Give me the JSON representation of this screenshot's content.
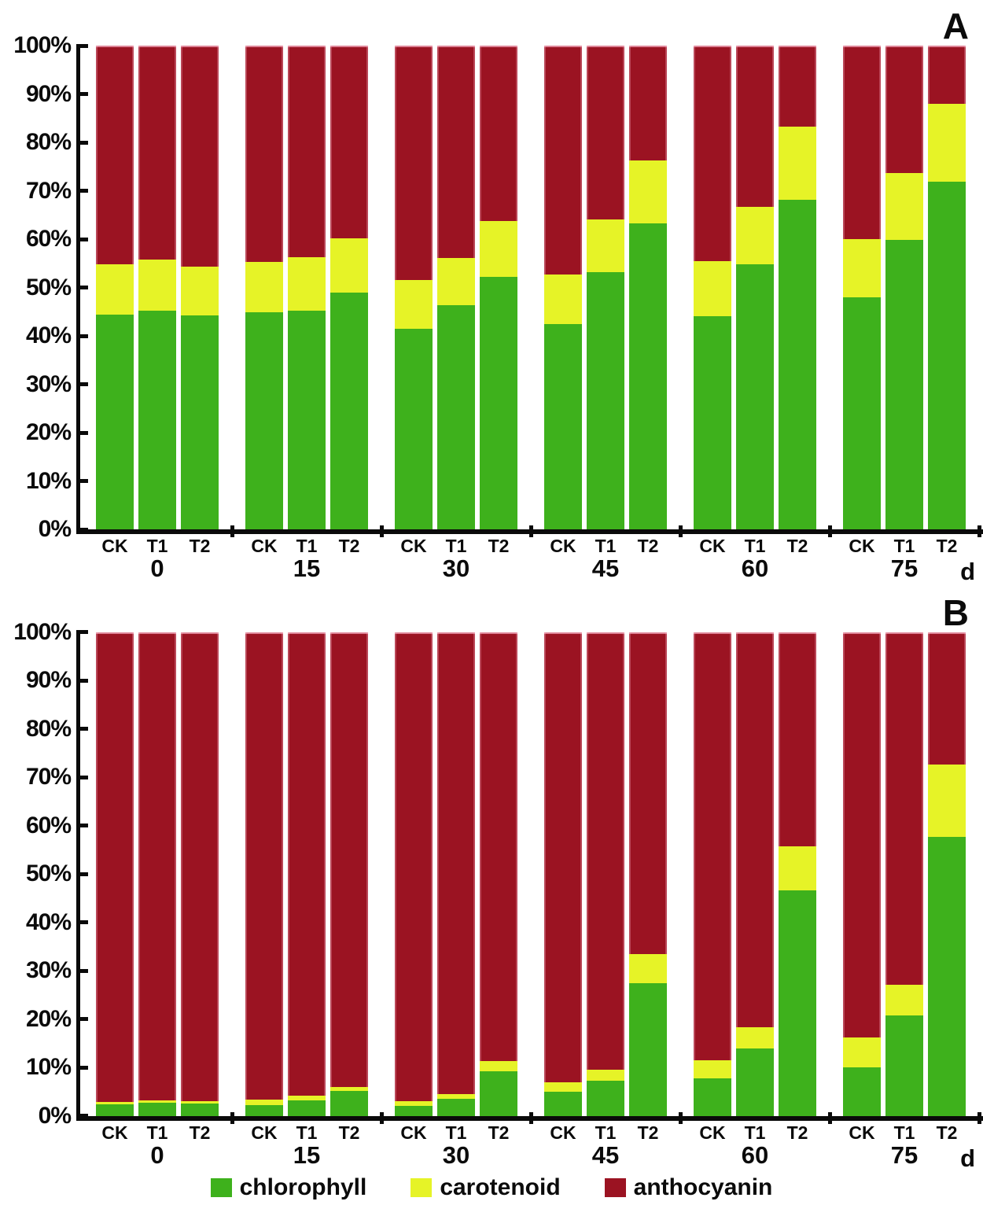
{
  "colors": {
    "chlorophyll": "#3EB11C",
    "carotenoid": "#E6F327",
    "anthocyanin": "#9B1322",
    "axis": "#0a0a0a"
  },
  "legend": {
    "items": [
      {
        "label": "chlorophyll",
        "color": "#3EB11C"
      },
      {
        "label": "carotenoid",
        "color": "#E6F327"
      },
      {
        "label": "anthocyanin",
        "color": "#9B1322"
      }
    ]
  },
  "chart_data": [
    {
      "panel_label": "A",
      "type": "bar",
      "stacked": true,
      "x_unit": "d",
      "ylim": [
        0,
        100
      ],
      "yticks": [
        "0%",
        "10%",
        "20%",
        "30%",
        "40%",
        "50%",
        "60%",
        "70%",
        "80%",
        "90%",
        "100%"
      ],
      "bar_labels": [
        "CK",
        "T1",
        "T2"
      ],
      "series_order": [
        "chlorophyll",
        "carotenoid",
        "anthocyanin"
      ],
      "groups": [
        {
          "label": "0",
          "bars": [
            {
              "label": "CK",
              "chlorophyll": 44.4,
              "carotenoid": 10.4,
              "anthocyanin": 45.2
            },
            {
              "label": "T1",
              "chlorophyll": 45.2,
              "carotenoid": 10.6,
              "anthocyanin": 44.2
            },
            {
              "label": "T2",
              "chlorophyll": 44.3,
              "carotenoid": 10.0,
              "anthocyanin": 45.7
            }
          ]
        },
        {
          "label": "15",
          "bars": [
            {
              "label": "CK",
              "chlorophyll": 44.9,
              "carotenoid": 10.4,
              "anthocyanin": 44.7
            },
            {
              "label": "T1",
              "chlorophyll": 45.2,
              "carotenoid": 11.1,
              "anthocyanin": 43.7
            },
            {
              "label": "T2",
              "chlorophyll": 49.0,
              "carotenoid": 11.2,
              "anthocyanin": 39.8
            }
          ]
        },
        {
          "label": "30",
          "bars": [
            {
              "label": "CK",
              "chlorophyll": 41.5,
              "carotenoid": 10.0,
              "anthocyanin": 48.5
            },
            {
              "label": "T1",
              "chlorophyll": 46.3,
              "carotenoid": 9.8,
              "anthocyanin": 43.9
            },
            {
              "label": "T2",
              "chlorophyll": 52.2,
              "carotenoid": 11.6,
              "anthocyanin": 36.2
            }
          ]
        },
        {
          "label": "45",
          "bars": [
            {
              "label": "CK",
              "chlorophyll": 42.5,
              "carotenoid": 10.2,
              "anthocyanin": 47.3
            },
            {
              "label": "T1",
              "chlorophyll": 53.2,
              "carotenoid": 10.9,
              "anthocyanin": 35.9
            },
            {
              "label": "T2",
              "chlorophyll": 63.3,
              "carotenoid": 13.0,
              "anthocyanin": 23.7
            }
          ]
        },
        {
          "label": "60",
          "bars": [
            {
              "label": "CK",
              "chlorophyll": 44.0,
              "carotenoid": 11.4,
              "anthocyanin": 44.6
            },
            {
              "label": "T1",
              "chlorophyll": 54.8,
              "carotenoid": 11.8,
              "anthocyanin": 33.4
            },
            {
              "label": "T2",
              "chlorophyll": 68.1,
              "carotenoid": 15.2,
              "anthocyanin": 16.7
            }
          ]
        },
        {
          "label": "75",
          "bars": [
            {
              "label": "CK",
              "chlorophyll": 47.9,
              "carotenoid": 12.1,
              "anthocyanin": 40.0
            },
            {
              "label": "T1",
              "chlorophyll": 59.8,
              "carotenoid": 13.9,
              "anthocyanin": 26.3
            },
            {
              "label": "T2",
              "chlorophyll": 71.9,
              "carotenoid": 16.1,
              "anthocyanin": 12.0
            }
          ]
        }
      ]
    },
    {
      "panel_label": "B",
      "type": "bar",
      "stacked": true,
      "x_unit": "d",
      "ylim": [
        0,
        100
      ],
      "yticks": [
        "0%",
        "10%",
        "20%",
        "30%",
        "40%",
        "50%",
        "60%",
        "70%",
        "80%",
        "90%",
        "100%"
      ],
      "bar_labels": [
        "CK",
        "T1",
        "T2"
      ],
      "series_order": [
        "chlorophyll",
        "carotenoid",
        "anthocyanin"
      ],
      "groups": [
        {
          "label": "0",
          "bars": [
            {
              "label": "CK",
              "chlorophyll": 2.4,
              "carotenoid": 0.5,
              "anthocyanin": 97.1
            },
            {
              "label": "T1",
              "chlorophyll": 2.7,
              "carotenoid": 0.5,
              "anthocyanin": 96.8
            },
            {
              "label": "T2",
              "chlorophyll": 2.5,
              "carotenoid": 0.6,
              "anthocyanin": 96.9
            }
          ]
        },
        {
          "label": "15",
          "bars": [
            {
              "label": "CK",
              "chlorophyll": 2.3,
              "carotenoid": 1.0,
              "anthocyanin": 96.7
            },
            {
              "label": "T1",
              "chlorophyll": 3.2,
              "carotenoid": 0.9,
              "anthocyanin": 95.9
            },
            {
              "label": "T2",
              "chlorophyll": 5.1,
              "carotenoid": 0.9,
              "anthocyanin": 94.0
            }
          ]
        },
        {
          "label": "30",
          "bars": [
            {
              "label": "CK",
              "chlorophyll": 2.1,
              "carotenoid": 1.0,
              "anthocyanin": 96.9
            },
            {
              "label": "T1",
              "chlorophyll": 3.6,
              "carotenoid": 0.9,
              "anthocyanin": 95.5
            },
            {
              "label": "T2",
              "chlorophyll": 9.2,
              "carotenoid": 2.2,
              "anthocyanin": 88.6
            }
          ]
        },
        {
          "label": "45",
          "bars": [
            {
              "label": "CK",
              "chlorophyll": 5.0,
              "carotenoid": 2.0,
              "anthocyanin": 93.0
            },
            {
              "label": "T1",
              "chlorophyll": 7.2,
              "carotenoid": 2.4,
              "anthocyanin": 90.4
            },
            {
              "label": "T2",
              "chlorophyll": 27.4,
              "carotenoid": 6.0,
              "anthocyanin": 66.6
            }
          ]
        },
        {
          "label": "60",
          "bars": [
            {
              "label": "CK",
              "chlorophyll": 7.7,
              "carotenoid": 3.8,
              "anthocyanin": 88.5
            },
            {
              "label": "T1",
              "chlorophyll": 14.0,
              "carotenoid": 4.4,
              "anthocyanin": 81.6
            },
            {
              "label": "T2",
              "chlorophyll": 46.6,
              "carotenoid": 9.1,
              "anthocyanin": 44.3
            }
          ]
        },
        {
          "label": "75",
          "bars": [
            {
              "label": "CK",
              "chlorophyll": 10.0,
              "carotenoid": 6.2,
              "anthocyanin": 83.8
            },
            {
              "label": "T1",
              "chlorophyll": 20.8,
              "carotenoid": 6.3,
              "anthocyanin": 72.9
            },
            {
              "label": "T2",
              "chlorophyll": 57.6,
              "carotenoid": 15.1,
              "anthocyanin": 27.3
            }
          ]
        }
      ]
    }
  ]
}
